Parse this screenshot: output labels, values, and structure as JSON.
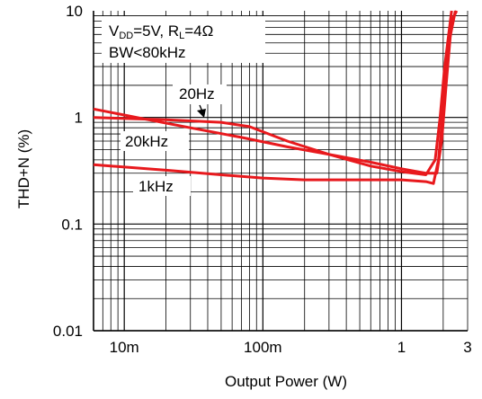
{
  "chart_data": {
    "type": "line",
    "title": "",
    "xlabel": "Output Power (W)",
    "ylabel": "THD+N (%)",
    "xscale": "log",
    "yscale": "log",
    "xlim": [
      0.006,
      3
    ],
    "ylim": [
      0.01,
      10
    ],
    "grid": "major and minor (log)",
    "line_color": "#e8191d",
    "x_ticks": [
      {
        "value": 0.01,
        "label": "10m"
      },
      {
        "value": 0.1,
        "label": "100m"
      },
      {
        "value": 1,
        "label": "1"
      },
      {
        "value": 3,
        "label": "3"
      }
    ],
    "y_ticks": [
      {
        "value": 10,
        "label": "10"
      },
      {
        "value": 1,
        "label": "1"
      },
      {
        "value": 0.1,
        "label": "0.1"
      },
      {
        "value": 0.01,
        "label": "0.01"
      }
    ],
    "conditions": {
      "line1_parts": [
        {
          "text": "V",
          "sub": false
        },
        {
          "text": "DD",
          "sub": true
        },
        {
          "text": "=5V, R",
          "sub": false
        },
        {
          "text": "L",
          "sub": true
        },
        {
          "text": "=4Ω",
          "sub": false
        }
      ],
      "line2": "BW<80kHz"
    },
    "series": [
      {
        "name": "20Hz",
        "points": [
          [
            0.006,
            1.0
          ],
          [
            0.02,
            0.95
          ],
          [
            0.05,
            0.9
          ],
          [
            0.08,
            0.82
          ],
          [
            0.15,
            0.6
          ],
          [
            0.3,
            0.45
          ],
          [
            0.6,
            0.35
          ],
          [
            1.0,
            0.31
          ],
          [
            1.5,
            0.29
          ],
          [
            1.75,
            0.4
          ],
          [
            1.9,
            1.0
          ],
          [
            2.05,
            3.0
          ],
          [
            2.3,
            10.0
          ]
        ]
      },
      {
        "name": "20kHz",
        "points": [
          [
            0.006,
            1.2
          ],
          [
            0.015,
            0.95
          ],
          [
            0.03,
            0.8
          ],
          [
            0.07,
            0.65
          ],
          [
            0.15,
            0.53
          ],
          [
            0.3,
            0.45
          ],
          [
            0.6,
            0.38
          ],
          [
            1.0,
            0.33
          ],
          [
            1.5,
            0.3
          ],
          [
            1.8,
            0.3
          ],
          [
            1.95,
            0.6
          ],
          [
            2.1,
            2.0
          ],
          [
            2.3,
            8.0
          ],
          [
            2.5,
            10.0
          ]
        ]
      },
      {
        "name": "1kHz",
        "points": [
          [
            0.006,
            0.36
          ],
          [
            0.02,
            0.32
          ],
          [
            0.05,
            0.29
          ],
          [
            0.1,
            0.27
          ],
          [
            0.2,
            0.26
          ],
          [
            0.5,
            0.26
          ],
          [
            1.0,
            0.26
          ],
          [
            1.5,
            0.25
          ],
          [
            1.7,
            0.24
          ],
          [
            1.85,
            0.4
          ],
          [
            2.0,
            1.2
          ],
          [
            2.2,
            5.0
          ],
          [
            2.45,
            10.0
          ]
        ]
      }
    ],
    "annotations": [
      {
        "text": "20Hz",
        "series": "20Hz",
        "arrow": true
      },
      {
        "text": "20kHz",
        "series": "20kHz",
        "arrow": false
      },
      {
        "text": "1kHz",
        "series": "1kHz",
        "arrow": false
      }
    ]
  }
}
